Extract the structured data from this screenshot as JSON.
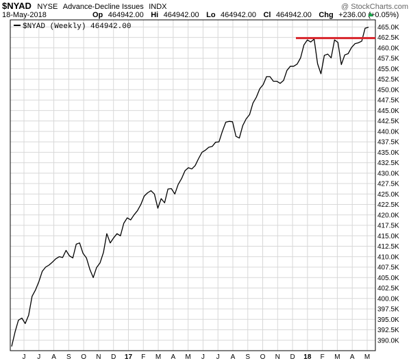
{
  "header": {
    "symbol": "$NYAD",
    "exchange": "NYSE",
    "name": "Advance-Decline Issues",
    "tag": "INDX",
    "date": "18-May-2018",
    "op_label": "Op",
    "op": "464942.00",
    "hi_label": "Hi",
    "hi": "464942.00",
    "lo_label": "Lo",
    "lo": "464942.00",
    "cl_label": "Cl",
    "cl": "464942.00",
    "chg_label": "Chg",
    "chg": "+236.00 (+0.05%)",
    "watermark": "@ StockCharts.com"
  },
  "colors": {
    "line": "#000000",
    "grid": "#d8d8d8",
    "resistance": "#d9252b",
    "up_arrow": "#1aa34a"
  },
  "chart_data": {
    "type": "line",
    "title": "$NYAD NYSE - Advance-Decline Issues INDX",
    "legend": "$NYAD (Weekly) 464942.00",
    "legend_position": "top-left",
    "grid": true,
    "y_axis_side": "right",
    "ylim": [
      387500,
      466700
    ],
    "y_ticks": [
      390000,
      392500,
      395000,
      397500,
      400000,
      402500,
      405000,
      407500,
      410000,
      412500,
      415000,
      417500,
      420000,
      422500,
      425000,
      427500,
      430000,
      432500,
      435000,
      437500,
      440000,
      442500,
      445000,
      447500,
      450000,
      452500,
      455000,
      457500,
      460000,
      462500,
      465000
    ],
    "y_tick_labels": [
      "390.0K",
      "392.5K",
      "395.0K",
      "397.5K",
      "400.0K",
      "402.5K",
      "405.0K",
      "407.5K",
      "410.0K",
      "412.5K",
      "415.0K",
      "417.5K",
      "420.0K",
      "422.5K",
      "425.0K",
      "427.5K",
      "430.0K",
      "432.5K",
      "435.0K",
      "437.5K",
      "440.0K",
      "442.5K",
      "445.0K",
      "447.5K",
      "450.0K",
      "452.5K",
      "455.0K",
      "457.5K",
      "460.0K",
      "462.5K",
      "465.0K"
    ],
    "x_tick_labels": [
      "J",
      "J",
      "A",
      "S",
      "O",
      "N",
      "D",
      "17",
      "F",
      "M",
      "A",
      "M",
      "J",
      "J",
      "A",
      "S",
      "O",
      "N",
      "D",
      "18",
      "F",
      "M",
      "A",
      "M"
    ],
    "x_bold_labels": [
      "17",
      "18"
    ],
    "series": [
      {
        "values": [
          388500,
          392000,
          394800,
          395300,
          394000,
          396000,
          400500,
          402000,
          404000,
          406500,
          407500,
          408000,
          408700,
          409500,
          410000,
          409800,
          411500,
          410200,
          409700,
          413000,
          413300,
          410800,
          409700,
          407000,
          405000,
          407400,
          408500,
          411000,
          415500,
          413300,
          414500,
          415500,
          415000,
          418000,
          419300,
          418800,
          420000,
          421000,
          422500,
          424500,
          425300,
          425800,
          425000,
          421600,
          423900,
          422900,
          426200,
          426300,
          425000,
          427300,
          428700,
          430600,
          431300,
          431000,
          431800,
          433500,
          435000,
          435500,
          436200,
          436400,
          437400,
          437500,
          440000,
          442200,
          442400,
          442300,
          438800,
          438400,
          441400,
          443000,
          444000,
          446800,
          448200,
          450200,
          451200,
          453100,
          453100,
          452000,
          452000,
          451500,
          452200,
          454600,
          455600,
          455600,
          456100,
          457600,
          460700,
          461900,
          461400,
          462100,
          456200,
          453800,
          458200,
          458500,
          457600,
          461900,
          461300,
          456000,
          458300,
          458600,
          460100,
          461000,
          461200,
          461600,
          464700,
          464942
        ],
        "resistance": {
          "value": 462500,
          "label": ""
        }
      }
    ]
  }
}
